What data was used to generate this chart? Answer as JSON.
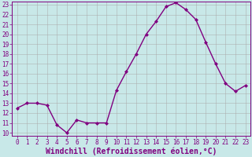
{
  "x": [
    0,
    1,
    2,
    3,
    4,
    5,
    6,
    7,
    8,
    9,
    10,
    11,
    12,
    13,
    14,
    15,
    16,
    17,
    18,
    19,
    20,
    21,
    22,
    23
  ],
  "y": [
    12.5,
    13.0,
    13.0,
    12.8,
    10.8,
    10.0,
    11.3,
    11.0,
    11.0,
    11.0,
    14.3,
    16.2,
    18.0,
    20.0,
    21.3,
    22.8,
    23.2,
    22.5,
    21.5,
    19.2,
    17.0,
    15.0,
    14.2,
    14.8
  ],
  "line_color": "#800080",
  "marker": "D",
  "marker_size": 2.0,
  "bg_color": "#c8e8e8",
  "grid_color": "#aaaaaa",
  "xlabel": "Windchill (Refroidissement éolien,°C)",
  "xlabel_fontsize": 7,
  "ylim_min": 10,
  "ylim_max": 23,
  "xlim_min": 0,
  "xlim_max": 23,
  "yticks": [
    10,
    11,
    12,
    13,
    14,
    15,
    16,
    17,
    18,
    19,
    20,
    21,
    22,
    23
  ],
  "xticks": [
    0,
    1,
    2,
    3,
    4,
    5,
    6,
    7,
    8,
    9,
    10,
    11,
    12,
    13,
    14,
    15,
    16,
    17,
    18,
    19,
    20,
    21,
    22,
    23
  ],
  "tick_fontsize": 5.5,
  "line_width": 1.0
}
